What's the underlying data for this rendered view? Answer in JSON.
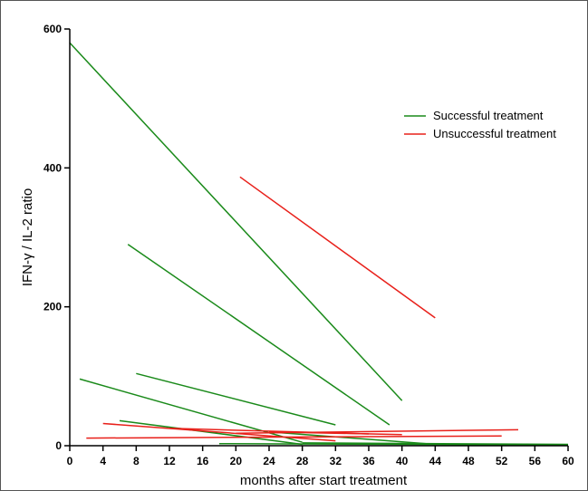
{
  "chart_data": {
    "type": "line",
    "xlabel": "months after start treatment",
    "ylabel": "IFN-γ / IL-2 ratio",
    "xlim": [
      0,
      60
    ],
    "ylim": [
      0,
      600
    ],
    "x_ticks": [
      0,
      4,
      8,
      12,
      16,
      20,
      24,
      28,
      32,
      36,
      40,
      44,
      48,
      52,
      56,
      60
    ],
    "y_ticks": [
      0,
      200,
      400,
      600
    ],
    "grid": false,
    "legend_position": "top-right",
    "legend": [
      {
        "label": "Successful treatment",
        "color": "#1a8a1a"
      },
      {
        "label": "Unsuccessful treatment",
        "color": "#e8201a"
      }
    ],
    "groups": [
      {
        "name": "Successful treatment",
        "color": "#1a8a1a",
        "lines": [
          {
            "x": [
              0,
              40
            ],
            "y": [
              580,
              65
            ]
          },
          {
            "x": [
              7,
              38.5
            ],
            "y": [
              290,
              30
            ]
          },
          {
            "x": [
              8,
              32
            ],
            "y": [
              104,
              30
            ]
          },
          {
            "x": [
              1.2,
              28
            ],
            "y": [
              96,
              5
            ]
          },
          {
            "x": [
              6,
              28
            ],
            "y": [
              36,
              2
            ]
          },
          {
            "x": [
              18,
              60
            ],
            "y": [
              3,
              1
            ]
          },
          {
            "x": [
              28,
              60
            ],
            "y": [
              4,
              2
            ]
          },
          {
            "x": [
              24,
              44
            ],
            "y": [
              20,
              2
            ]
          }
        ]
      },
      {
        "name": "Unsuccessful treatment",
        "color": "#e8201a",
        "lines": [
          {
            "x": [
              20.5,
              44
            ],
            "y": [
              387,
              184
            ]
          },
          {
            "x": [
              4,
              32
            ],
            "y": [
              32,
              7
            ]
          },
          {
            "x": [
              2,
              52
            ],
            "y": [
              11,
              14
            ]
          },
          {
            "x": [
              20,
              54
            ],
            "y": [
              18,
              23
            ]
          },
          {
            "x": [
              24,
              40
            ],
            "y": [
              20,
              16
            ]
          },
          {
            "x": [
              12,
              36
            ],
            "y": [
              25,
              17
            ]
          }
        ]
      }
    ]
  }
}
